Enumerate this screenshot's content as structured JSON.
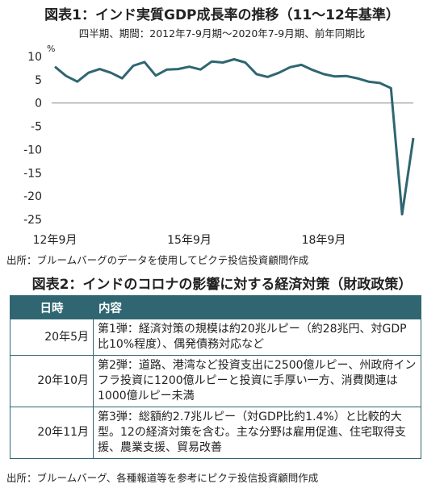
{
  "figure1": {
    "title": "図表1：インド実質GDP成長率の推移（11～12年基準）",
    "subtitle": "四半期、期間：2012年7-9月期～2020年7-9月期、前年同期比",
    "unit": "%",
    "source": "出所：ブルームバーグのデータを使用してピクテ投信投資顧問作成"
  },
  "chart_data": {
    "type": "line",
    "x": [
      "2012Q3",
      "2012Q4",
      "2013Q1",
      "2013Q2",
      "2013Q3",
      "2013Q4",
      "2014Q1",
      "2014Q2",
      "2014Q3",
      "2014Q4",
      "2015Q1",
      "2015Q2",
      "2015Q3",
      "2015Q4",
      "2016Q1",
      "2016Q2",
      "2016Q3",
      "2016Q4",
      "2017Q1",
      "2017Q2",
      "2017Q3",
      "2017Q4",
      "2018Q1",
      "2018Q2",
      "2018Q3",
      "2018Q4",
      "2019Q1",
      "2019Q2",
      "2019Q3",
      "2019Q4",
      "2020Q1",
      "2020Q2",
      "2020Q3"
    ],
    "series": [
      {
        "values": [
          7.8,
          5.8,
          4.6,
          6.5,
          7.3,
          6.5,
          5.3,
          8.0,
          8.8,
          5.9,
          7.2,
          7.3,
          7.8,
          7.2,
          8.9,
          8.7,
          9.4,
          8.7,
          6.2,
          5.6,
          6.5,
          7.7,
          8.2,
          7.1,
          6.2,
          5.7,
          5.8,
          5.3,
          4.6,
          4.3,
          3.2,
          -23.9,
          -7.5
        ]
      }
    ],
    "yticks": [
      10,
      5,
      0,
      -5,
      -10,
      -15,
      -20,
      -25
    ],
    "ylim": [
      -25,
      10
    ],
    "xticks": [
      {
        "label": "12年9月",
        "index": 0
      },
      {
        "label": "15年9月",
        "index": 12
      },
      {
        "label": "18年9月",
        "index": 24
      }
    ],
    "line_color": "#2f6672",
    "grid": false
  },
  "figure2": {
    "title": "図表2：インドのコロナの影響に対する経済対策（財政政策）",
    "header": {
      "date": "日時",
      "content": "内容"
    },
    "rows": [
      {
        "date": "20年5月",
        "content": "第1弾：経済対策の規模は約20兆ルピー（約28兆円、対GDP比10%程度）、偶発債務対応など"
      },
      {
        "date": "20年10月",
        "content": "第2弾：道路、港湾など投資支出に2500億ルピー、州政府インフラ投資に1200億ルピーと投資に手厚い一方、消費関連は1000億ルピー未満"
      },
      {
        "date": "20年11月",
        "content": "第3弾：総額約2.7兆ルピー（対GDP比約1.4%）と比較的大型。12の経済対策を含む。主な分野は雇用促進、住宅取得支援、農業支援、貿易改善"
      }
    ],
    "source": "出所：ブルームバーグ、各種報道等を参考にピクテ投信投資顧問作成"
  }
}
